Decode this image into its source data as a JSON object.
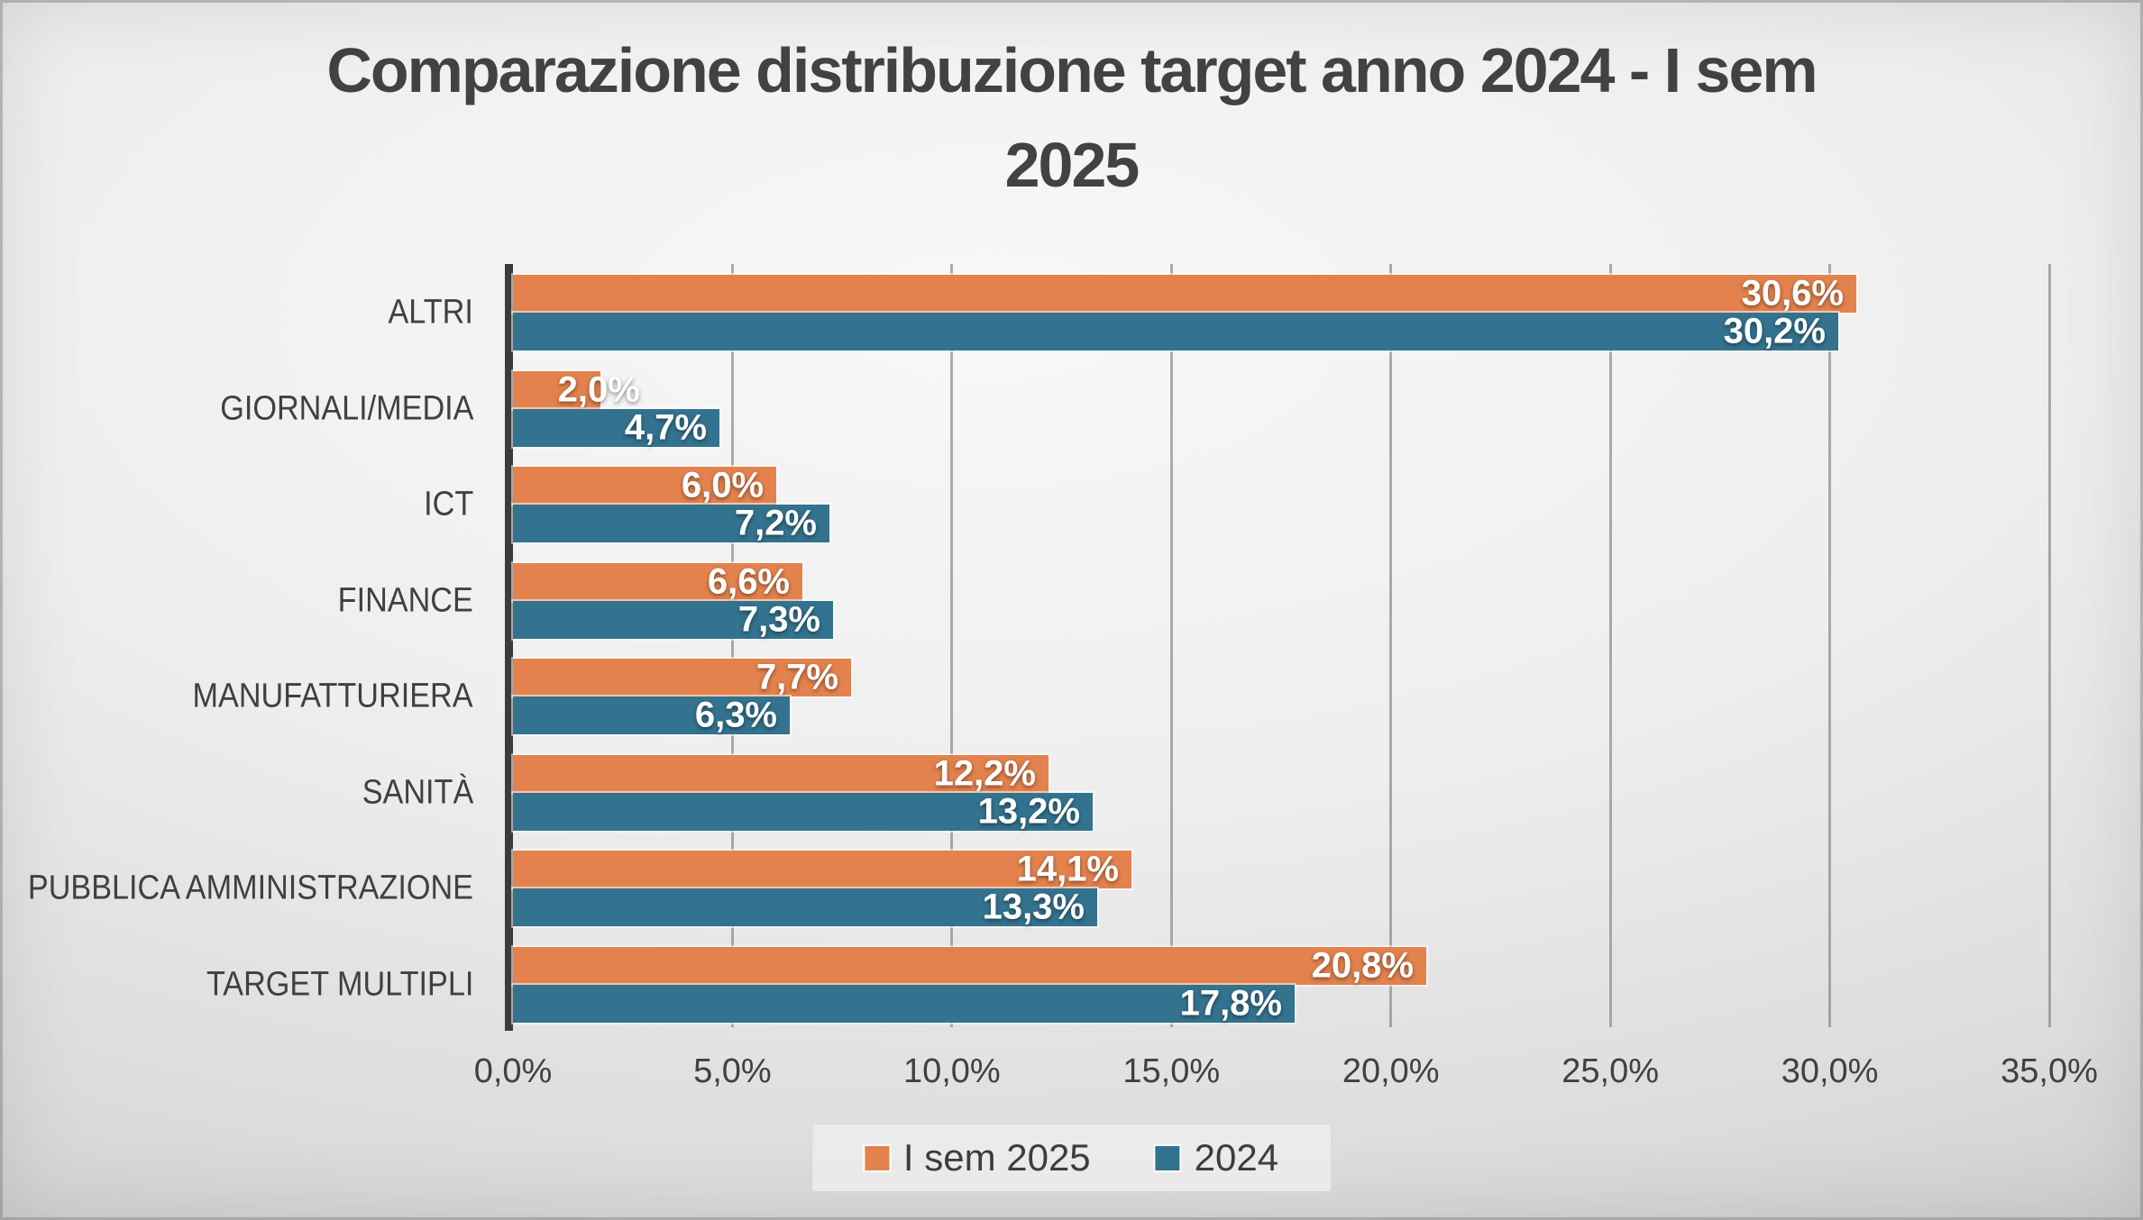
{
  "chart_data": {
    "type": "bar",
    "orientation": "horizontal",
    "title": "Comparazione distribuzione target anno 2024 - I sem 2025",
    "title_lines": [
      "Comparazione distribuzione target anno 2024 - I sem",
      "2025"
    ],
    "categories": [
      "ALTRI",
      "GIORNALI/MEDIA",
      "ICT",
      "FINANCE",
      "MANUFATTURIERA",
      "SANITÀ",
      "PUBBLICA AMMINISTRAZIONE",
      "TARGET MULTIPLI"
    ],
    "series": [
      {
        "name": "I sem 2025",
        "color": "#E3824D",
        "values": [
          30.6,
          2.0,
          6.0,
          6.6,
          7.7,
          12.2,
          14.1,
          20.8
        ],
        "labels": [
          "30,6%",
          "2,0%",
          "6,0%",
          "6,6%",
          "7,7%",
          "12,2%",
          "14,1%",
          "20,8%"
        ]
      },
      {
        "name": "2024",
        "color": "#33738F",
        "values": [
          30.2,
          4.7,
          7.2,
          7.3,
          6.3,
          13.2,
          13.3,
          17.8
        ],
        "labels": [
          "30,2%",
          "4,7%",
          "7,2%",
          "7,3%",
          "6,3%",
          "13,2%",
          "13,3%",
          "17,8%"
        ]
      }
    ],
    "x_axis": {
      "min": 0,
      "max": 35,
      "tick_step": 5,
      "tick_labels": [
        "0,0%",
        "5,0%",
        "10,0%",
        "15,0%",
        "20,0%",
        "25,0%",
        "30,0%",
        "35,0%"
      ]
    },
    "legend": {
      "position": "bottom",
      "entries": [
        "I sem 2025",
        "2024"
      ]
    },
    "grid": true,
    "colors": {
      "axis_line": "#3b3b3b",
      "grid_line": "#8a8a8a",
      "text": "#404040",
      "bar_value_text": "#ffffff"
    }
  }
}
